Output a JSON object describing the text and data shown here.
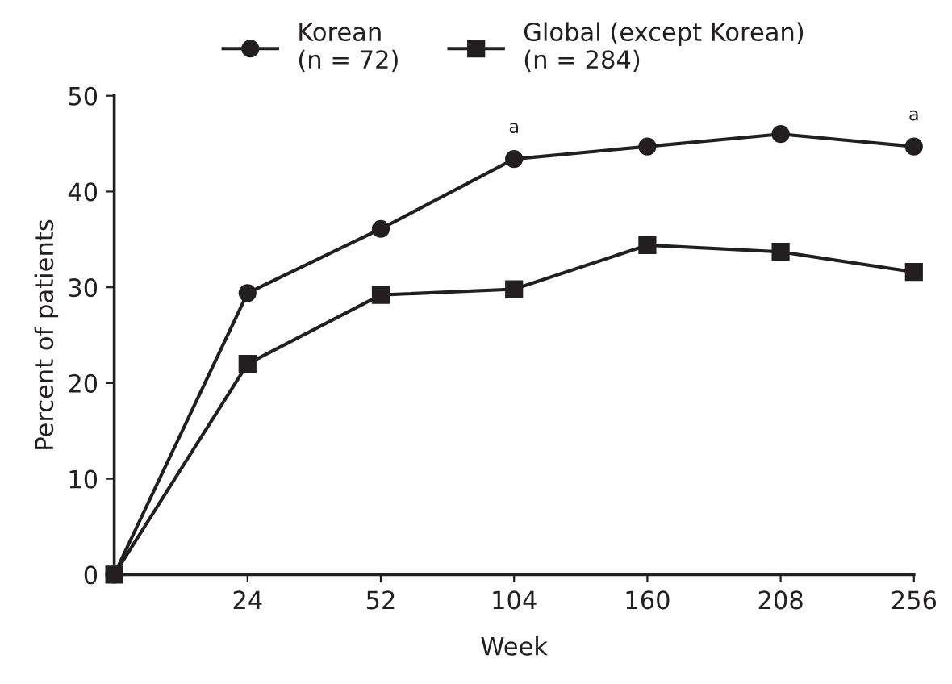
{
  "chart_data": {
    "type": "line",
    "xlabel": "Week",
    "ylabel": "Percent of patients",
    "categories": [
      null,
      "24",
      "52",
      "104",
      "160",
      "208",
      "256"
    ],
    "series": [
      {
        "name": "Korean\n(n = 72)",
        "color": "#231f20",
        "marker": "circle",
        "values": [
          0,
          29.4,
          36.1,
          43.4,
          44.7,
          46.0,
          44.7
        ]
      },
      {
        "name": "Global (except Korean)\n(n = 284)",
        "color": "#231f20",
        "marker": "square",
        "values": [
          0,
          22.0,
          29.2,
          29.8,
          34.4,
          33.7,
          31.6
        ]
      }
    ],
    "ylim": [
      0,
      50
    ],
    "yticks": [
      0,
      10,
      20,
      30,
      40,
      50
    ],
    "annotations": [
      {
        "text": "a",
        "x": "104",
        "y": 43.4
      },
      {
        "text": "a",
        "x": "256",
        "y": 44.7
      }
    ],
    "legend": "top",
    "grid": false,
    "line_style": "solid"
  }
}
